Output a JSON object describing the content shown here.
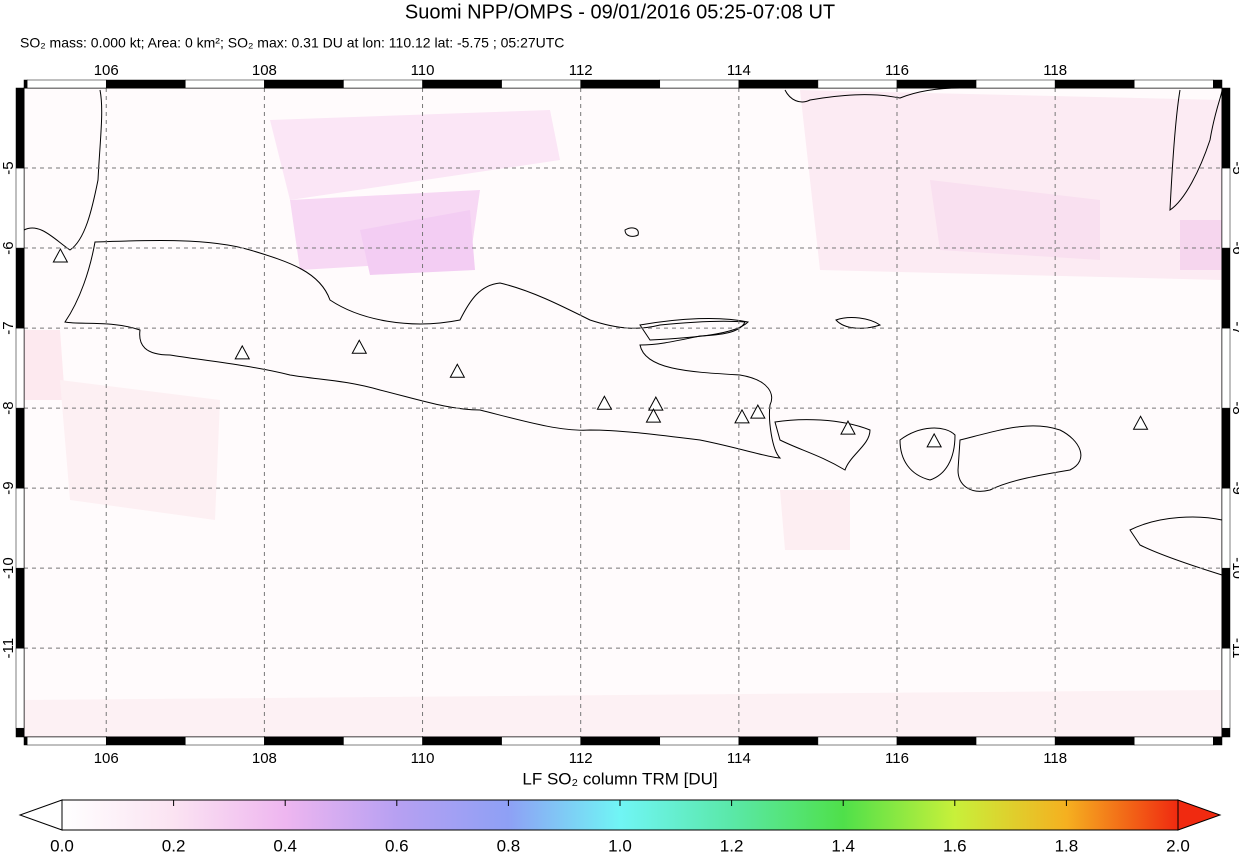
{
  "header": {
    "title": "Suomi NPP/OMPS - 09/01/2016 05:25-07:08 UT",
    "subtitle": "SO₂ mass: 0.000 kt; Area: 0 km²; SO₂ max: 0.31 DU at lon: 110.12 lat: -5.75 ; 05:27UTC"
  },
  "map": {
    "xlim": [
      104.96,
      120.11
    ],
    "ylim": [
      -4,
      -12.11
    ],
    "lon_ticks": [
      106,
      108,
      110,
      112,
      114,
      116,
      118
    ],
    "lat_ticks": [
      -5,
      -6,
      -7,
      -8,
      -9,
      -10,
      -11
    ],
    "volcanoes": [
      [
        105.42,
        -6.1
      ],
      [
        107.72,
        -7.31
      ],
      [
        109.2,
        -7.24
      ],
      [
        110.44,
        -7.54
      ],
      [
        112.3,
        -7.94
      ],
      [
        112.95,
        -7.95
      ],
      [
        112.92,
        -8.1
      ],
      [
        114.04,
        -8.11
      ],
      [
        114.24,
        -8.05
      ],
      [
        115.38,
        -8.25
      ],
      [
        116.47,
        -8.41
      ],
      [
        119.08,
        -8.19
      ]
    ]
  },
  "colorbar": {
    "label": "LF SO₂ column TRM [DU]",
    "lim": [
      0,
      2
    ],
    "ticks": [
      {
        "value": 0,
        "label": "0.0"
      },
      {
        "value": 0.2,
        "label": "0.2"
      },
      {
        "value": 0.4,
        "label": "0.4"
      },
      {
        "value": 0.6,
        "label": "0.6"
      },
      {
        "value": 0.8,
        "label": "0.8"
      },
      {
        "value": 1,
        "label": "1.0"
      },
      {
        "value": 1.2,
        "label": "1.2"
      },
      {
        "value": 1.4,
        "label": "1.4"
      },
      {
        "value": 1.6,
        "label": "1.6"
      },
      {
        "value": 1.8,
        "label": "1.8"
      },
      {
        "value": 2,
        "label": "2.0"
      }
    ]
  }
}
